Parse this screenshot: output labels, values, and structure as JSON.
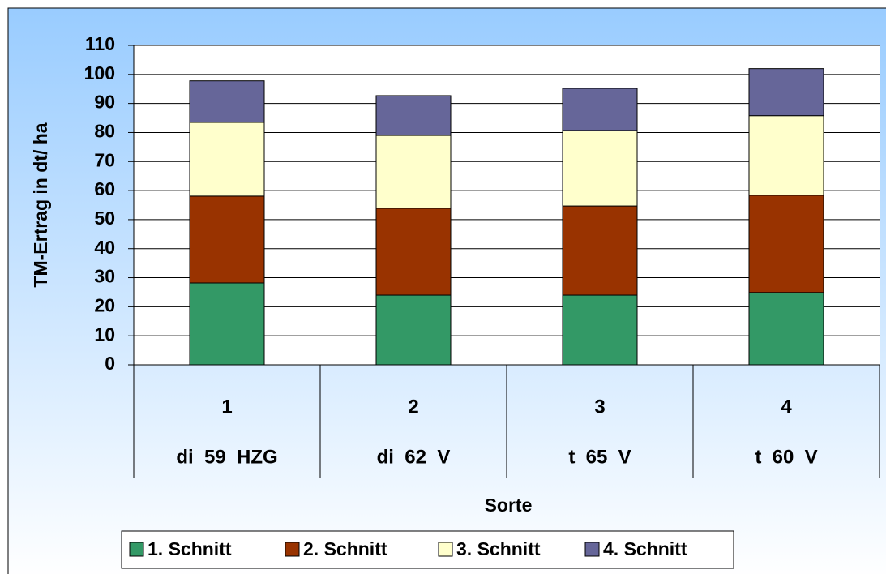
{
  "chart_data": {
    "type": "stacked_bar",
    "y_label": "TM-Ertrag in dt/ ha",
    "x_label": "Sorte",
    "categories": [
      "1",
      "2",
      "3",
      "4"
    ],
    "category_names": [
      "di  59  HZG",
      "di  62  V",
      "t  65  V",
      "t  60  V"
    ],
    "series": [
      {
        "name": "1. Schnitt",
        "color": "#339966",
        "values": [
          28.2,
          24,
          24,
          24.9
        ]
      },
      {
        "name": "2. Schnitt",
        "color": "#993300",
        "values": [
          29.9,
          29.9,
          30.7,
          33.5
        ]
      },
      {
        "name": "3. Schnitt",
        "color": "#ffffcc",
        "values": [
          25.4,
          25.1,
          26,
          27.4
        ]
      },
      {
        "name": "4. Schnitt",
        "color": "#666699",
        "values": [
          14.3,
          13.7,
          14.5,
          16.2
        ]
      }
    ],
    "ylim": [
      0,
      110
    ],
    "yticks": [
      0,
      10,
      20,
      30,
      40,
      50,
      60,
      70,
      80,
      90,
      100,
      110
    ],
    "grid": true,
    "legend": "bottom"
  }
}
